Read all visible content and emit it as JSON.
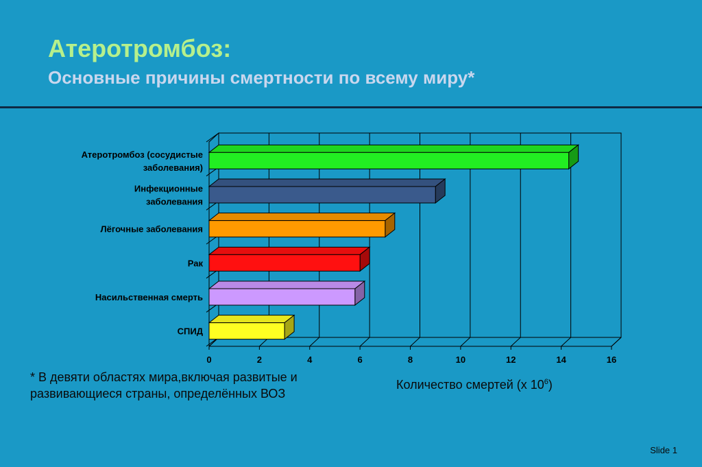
{
  "slide": {
    "title": "Атеротромбоз:",
    "subtitle": "Основные причины смертности по всему миру*",
    "footnote": "* В девяти областях мира,включая развитые и развивающиеся страны, определённых ВОЗ",
    "xlabel_text": "Количество смертей (x 10",
    "xlabel_exp": "6",
    "xlabel_close": ")",
    "slide_number": "Slide 1"
  },
  "chart_data": {
    "type": "bar",
    "orientation": "horizontal",
    "style": "3d",
    "categories": [
      [
        "Атеротромбоз (сосудистые",
        "заболевания)"
      ],
      [
        "Инфекционные",
        "заболевания"
      ],
      [
        "Лёгочные заболевания"
      ],
      [
        "Рак"
      ],
      [
        "Насильственная смерть"
      ],
      [
        "СПИД"
      ]
    ],
    "values": [
      14.3,
      9.0,
      7.0,
      6.0,
      5.8,
      3.0
    ],
    "colors": [
      "#22ee22",
      "#3a5a8c",
      "#ff9a00",
      "#ff1010",
      "#cc99ff",
      "#ffff22"
    ],
    "xlim": [
      0,
      16
    ],
    "xticks": [
      0,
      2,
      4,
      6,
      8,
      10,
      12,
      14,
      16
    ],
    "grid": true
  }
}
